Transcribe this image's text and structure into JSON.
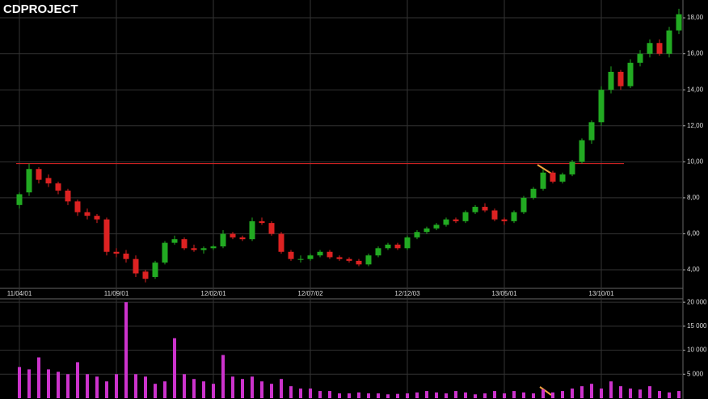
{
  "chart_data": [
    {
      "type": "candlestick",
      "title": "CDPROJECT",
      "categories": [
        "11/04/01",
        null,
        null,
        null,
        null,
        null,
        null,
        null,
        null,
        null,
        "11/09/01",
        null,
        null,
        null,
        null,
        null,
        null,
        null,
        null,
        null,
        "12/02/01",
        null,
        null,
        null,
        null,
        null,
        null,
        null,
        null,
        null,
        "12/07/02",
        null,
        null,
        null,
        null,
        null,
        null,
        null,
        null,
        null,
        "12/12/03",
        null,
        null,
        null,
        null,
        null,
        null,
        null,
        null,
        null,
        "13/05/01",
        null,
        null,
        null,
        null,
        null,
        null,
        null,
        null,
        null,
        "13/10/01",
        null,
        null,
        null,
        null,
        null,
        null,
        null,
        null
      ],
      "open": [
        7.6,
        8.3,
        9.6,
        9.1,
        8.8,
        8.4,
        7.8,
        7.2,
        7.0,
        6.8,
        5.0,
        4.9,
        4.6,
        3.9,
        3.6,
        4.4,
        5.5,
        5.7,
        5.2,
        5.1,
        5.2,
        5.3,
        6.0,
        5.8,
        5.7,
        6.7,
        6.6,
        6.0,
        5.0,
        4.6,
        4.6,
        4.8,
        5.0,
        4.7,
        4.6,
        4.5,
        4.3,
        4.8,
        5.2,
        5.4,
        5.2,
        5.8,
        6.1,
        6.3,
        6.5,
        6.8,
        6.7,
        7.2,
        7.5,
        7.3,
        6.8,
        6.7,
        7.2,
        8.0,
        8.5,
        9.4,
        8.9,
        9.3,
        10.0,
        11.2,
        12.2,
        14.0,
        15.0,
        14.2,
        15.5,
        16.0,
        16.6,
        16.0,
        17.3
      ],
      "high": [
        8.3,
        9.9,
        9.7,
        9.3,
        8.9,
        8.5,
        7.9,
        7.4,
        7.1,
        6.9,
        5.2,
        5.1,
        4.8,
        4.0,
        4.5,
        5.6,
        5.9,
        5.8,
        5.4,
        5.3,
        5.4,
        6.2,
        6.1,
        5.9,
        6.9,
        6.9,
        6.7,
        6.1,
        5.1,
        4.8,
        4.9,
        5.1,
        5.1,
        4.8,
        4.7,
        4.6,
        4.9,
        5.3,
        5.5,
        5.5,
        5.9,
        6.2,
        6.4,
        6.6,
        6.9,
        6.9,
        7.3,
        7.6,
        7.7,
        7.4,
        6.9,
        7.3,
        8.1,
        8.6,
        9.6,
        9.5,
        9.4,
        10.1,
        11.3,
        12.3,
        14.2,
        15.3,
        15.1,
        15.7,
        16.2,
        16.8,
        16.8,
        17.5,
        18.5
      ],
      "low": [
        7.4,
        8.1,
        8.8,
        8.6,
        8.2,
        7.6,
        7.0,
        6.8,
        6.6,
        4.8,
        4.7,
        4.4,
        3.6,
        3.3,
        3.5,
        4.3,
        5.4,
        5.1,
        5.0,
        4.9,
        5.1,
        5.2,
        5.7,
        5.6,
        5.6,
        6.5,
        5.9,
        4.9,
        4.5,
        4.4,
        4.5,
        4.7,
        4.6,
        4.5,
        4.4,
        4.2,
        4.2,
        4.7,
        5.1,
        5.1,
        5.1,
        5.7,
        6.0,
        6.2,
        6.4,
        6.6,
        6.6,
        7.1,
        7.2,
        6.7,
        6.5,
        6.6,
        7.1,
        7.9,
        8.4,
        8.8,
        8.8,
        9.2,
        9.9,
        11.0,
        12.0,
        13.8,
        14.0,
        14.1,
        15.3,
        15.8,
        15.9,
        15.8,
        17.1
      ],
      "close": [
        8.2,
        9.6,
        9.0,
        8.8,
        8.4,
        7.8,
        7.2,
        7.0,
        6.8,
        5.0,
        4.9,
        4.6,
        3.8,
        3.5,
        4.4,
        5.5,
        5.7,
        5.2,
        5.1,
        5.2,
        5.3,
        6.0,
        5.8,
        5.7,
        6.7,
        6.6,
        6.0,
        5.0,
        4.6,
        4.6,
        4.8,
        5.0,
        4.7,
        4.6,
        4.5,
        4.3,
        4.8,
        5.2,
        5.4,
        5.2,
        5.8,
        6.1,
        6.3,
        6.5,
        6.8,
        6.7,
        7.2,
        7.5,
        7.3,
        6.8,
        6.7,
        7.2,
        8.0,
        8.5,
        9.4,
        8.9,
        9.3,
        10.0,
        11.2,
        12.2,
        14.0,
        15.0,
        14.2,
        15.5,
        16.0,
        16.6,
        16.0,
        17.3,
        18.2
      ],
      "up_color": "#22aa22",
      "down_color": "#dd2222",
      "hline": 9.9,
      "hline_color": "#cc2222",
      "ylim": [
        2.97,
        18.99
      ],
      "yticks": [
        {
          "value": 4,
          "label": "4,00"
        },
        {
          "value": 6,
          "label": "6,00"
        },
        {
          "value": 8,
          "label": "8,00"
        },
        {
          "value": 10,
          "label": "10,00"
        },
        {
          "value": 12,
          "label": "12,00"
        },
        {
          "value": 14,
          "label": "14,00"
        },
        {
          "value": 16,
          "label": "16,00"
        },
        {
          "value": 18,
          "label": "18,00"
        }
      ],
      "grid": true
    },
    {
      "type": "bar",
      "color": "#cc33cc",
      "values": [
        6500,
        6000,
        8500,
        6000,
        5500,
        5000,
        7500,
        5000,
        4500,
        3500,
        5000,
        20000,
        5000,
        4500,
        3000,
        3500,
        12500,
        5000,
        4000,
        3500,
        3000,
        9000,
        4500,
        4000,
        4500,
        3500,
        3000,
        4000,
        2500,
        2000,
        2000,
        1500,
        1500,
        1000,
        1000,
        1200,
        1000,
        1000,
        800,
        900,
        1000,
        1200,
        1500,
        1200,
        1000,
        1500,
        1200,
        800,
        1000,
        1500,
        1000,
        1500,
        1200,
        1000,
        1800,
        1200,
        1500,
        2000,
        2500,
        3000,
        2000,
        3500,
        2500,
        2000,
        1800,
        2500,
        1500,
        1200,
        1500
      ],
      "ylim": [
        0,
        20700
      ],
      "yticks": [
        {
          "value": 5000,
          "label": "5 000"
        },
        {
          "value": 10000,
          "label": "10 000"
        },
        {
          "value": 15000,
          "label": "15 000"
        },
        {
          "value": 20000,
          "label": "20 000"
        }
      ],
      "grid": true
    }
  ]
}
